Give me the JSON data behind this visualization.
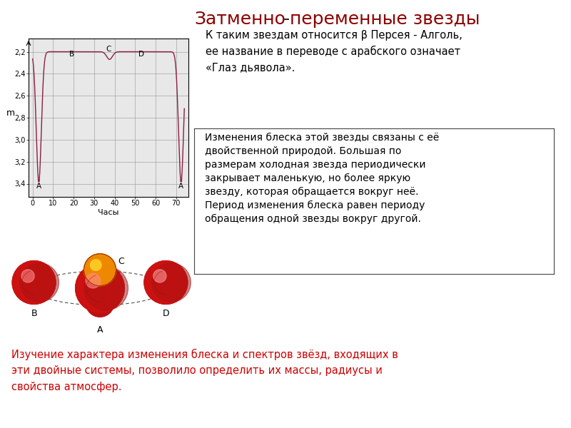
{
  "title_part1": "Затменно",
  "title_hyphen": "-",
  "title_part2": "переменные звезды",
  "title_color_red": "#8B0000",
  "title_color_black": "#1a1a1a",
  "title_fontsize": 18,
  "right_text1": "К таким звездам относится β Персея - Алголь,\nее название в переводе с арабского означает\n«Глаз дьявола».",
  "box_text": "Изменения блеска этой звезды связаны с её\nдвойственной природой. Большая по\nразмерам холодная звезда периодически\nзакрывает маленькую, но более яркую\nзвезду, которая обращается вокруг неё.\nПериод изменения блеска равен периоду\nобращения одной звезды вокруг другой.",
  "bottom_text": "Изучение характера изменения блеска и спектров звёзд, входящих в\nэти двойные системы, позволило определить их массы, радиусы и\nсвойства атмосфер.",
  "bottom_text_color": "#cc0000",
  "graph_ylabel": "m",
  "graph_xlabel": "Часы",
  "graph_yticks": [
    2.2,
    2.4,
    2.6,
    2.8,
    3.0,
    3.2,
    3.4
  ],
  "graph_xticks": [
    0,
    10,
    20,
    30,
    40,
    50,
    60,
    70
  ],
  "curve_color": "#8B2040",
  "background_color": "#ffffff",
  "graph_bg": "#e8e8e8"
}
